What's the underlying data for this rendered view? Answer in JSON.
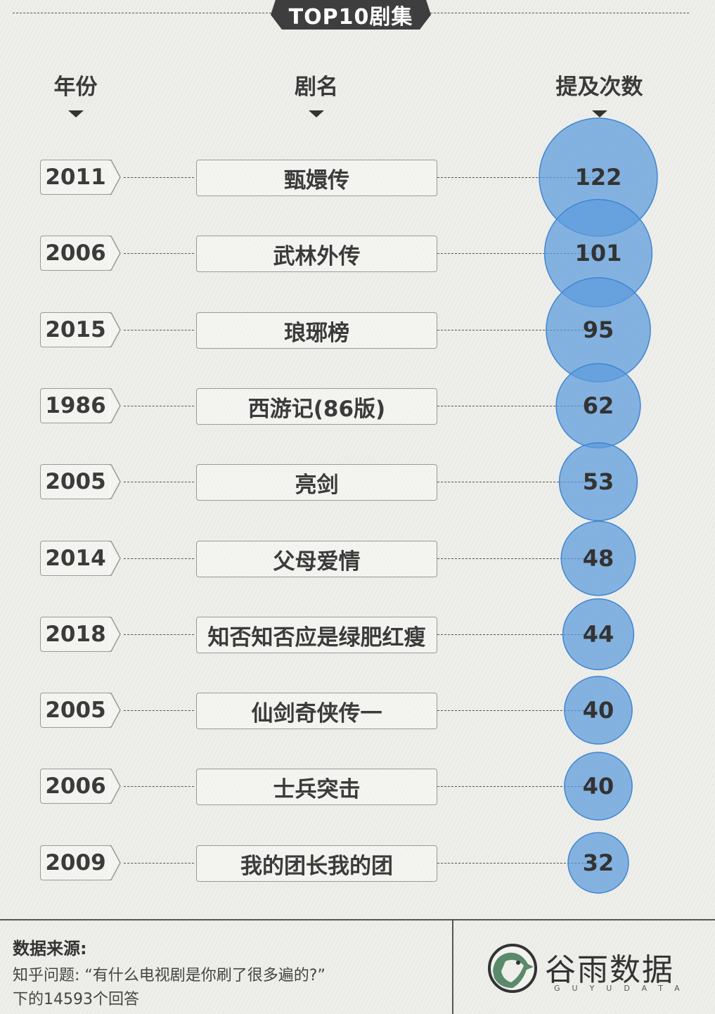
{
  "title": "TOP10剧集",
  "headers": {
    "year": "年份",
    "name": "剧名",
    "count": "提及次数"
  },
  "colors": {
    "bubble": "#5b9bdc",
    "bubble_stroke": "#3f86d2",
    "dark": "#3e3e3e"
  },
  "chart_data": {
    "type": "bubble",
    "title": "TOP10剧集",
    "columns": [
      "年份",
      "剧名",
      "提及次数"
    ],
    "rows": [
      {
        "year": "2011",
        "name": "甄嬛传",
        "count": 122
      },
      {
        "year": "2006",
        "name": "武林外传",
        "count": 101
      },
      {
        "year": "2015",
        "name": "琅琊榜",
        "count": 95
      },
      {
        "year": "1986",
        "name": "西游记(86版)",
        "count": 62
      },
      {
        "year": "2005",
        "name": "亮剑",
        "count": 53
      },
      {
        "year": "2014",
        "name": "父母爱情",
        "count": 48
      },
      {
        "year": "2018",
        "name": "知否知否应是绿肥红瘦",
        "count": 44
      },
      {
        "year": "2005",
        "name": "仙剑奇侠传一",
        "count": 40
      },
      {
        "year": "2006",
        "name": "士兵突击",
        "count": 40
      },
      {
        "year": "2009",
        "name": "我的团长我的团",
        "count": 32
      }
    ]
  },
  "footer": {
    "source_title": "数据来源:",
    "source_line1": "知乎问题: “有什么电视剧是你刷了很多遍的?”",
    "source_line2": "下的14593个回答",
    "logo_icon": "sparrow-logo-icon",
    "logo_name": "谷雨数据",
    "logo_sub": "GUYUDATA"
  }
}
